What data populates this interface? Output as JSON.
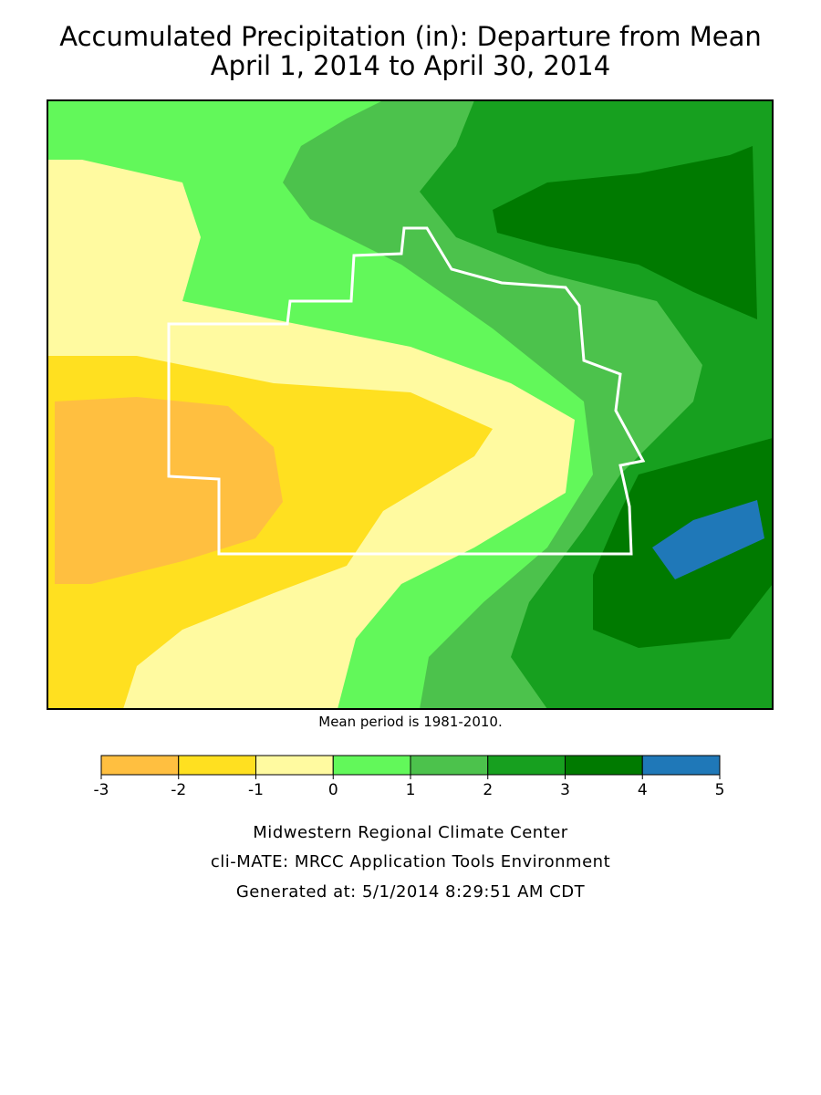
{
  "title": [
    "Accumulated Precipitation (in): Departure from Mean",
    "April 1, 2014 to April 30, 2014"
  ],
  "note": "Mean period is 1981-2010.",
  "legend": {
    "bins": [
      -3,
      -2,
      -1,
      0,
      1,
      2,
      3,
      4,
      5
    ],
    "colors": [
      "#ffbf40",
      "#ffe020",
      "#fffaa0",
      "#62f85a",
      "#4cc24c",
      "#17a01f",
      "#007a00",
      "#1f78b8"
    ]
  },
  "credits": [
    "Midwestern Regional Climate Center",
    "cli-MATE: MRCC Application Tools Environment",
    "Generated at: 5/1/2014 8:29:51 AM CDT"
  ]
}
